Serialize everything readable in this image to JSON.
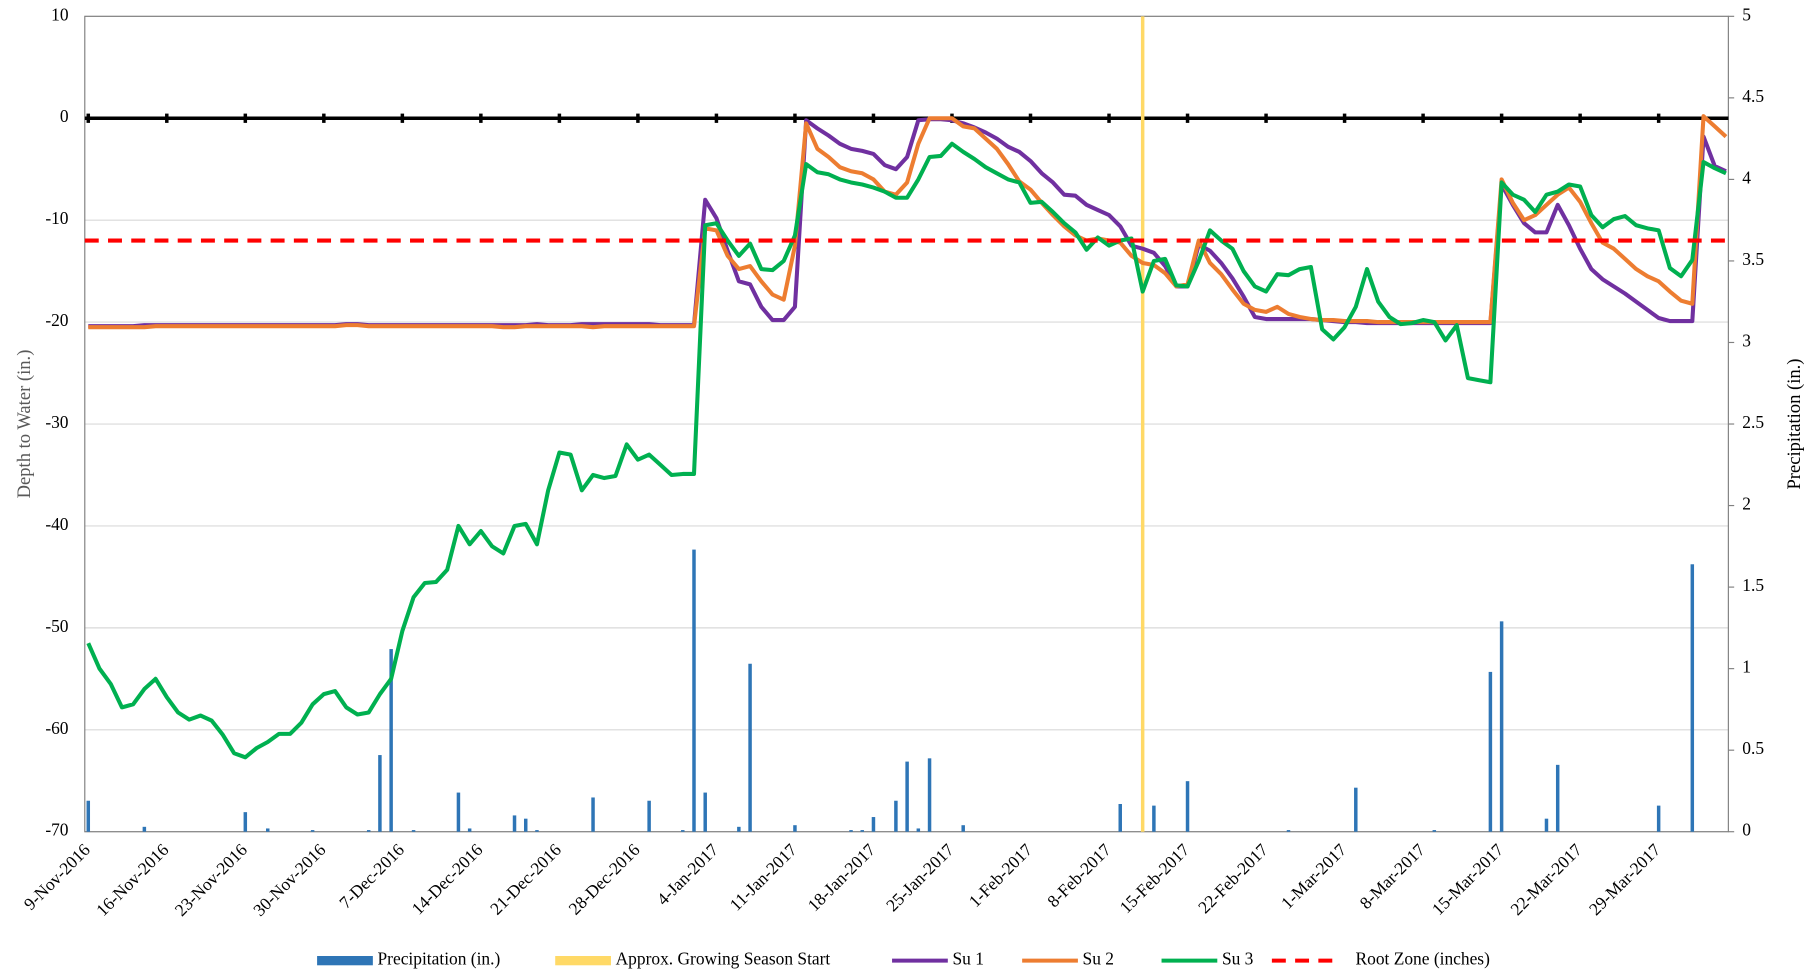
{
  "chart_data": {
    "type": "line",
    "y_label": "Depth to Water (in.)",
    "y2_label": "Precipitation (in.)",
    "ylim": [
      -70,
      10
    ],
    "yticks": [
      -70,
      -60,
      -50,
      -40,
      -30,
      -20,
      -10,
      0,
      10
    ],
    "y2lim": [
      0,
      5
    ],
    "y2ticks": [
      0,
      0.5,
      1,
      1.5,
      2,
      2.5,
      3,
      3.5,
      4,
      4.5,
      5
    ],
    "grid": true,
    "x": [
      "9-Nov-2016",
      "10-Nov-2016",
      "11-Nov-2016",
      "12-Nov-2016",
      "13-Nov-2016",
      "14-Nov-2016",
      "15-Nov-2016",
      "16-Nov-2016",
      "17-Nov-2016",
      "18-Nov-2016",
      "19-Nov-2016",
      "20-Nov-2016",
      "21-Nov-2016",
      "22-Nov-2016",
      "23-Nov-2016",
      "24-Nov-2016",
      "25-Nov-2016",
      "26-Nov-2016",
      "27-Nov-2016",
      "28-Nov-2016",
      "29-Nov-2016",
      "30-Nov-2016",
      "1-Dec-2016",
      "2-Dec-2016",
      "3-Dec-2016",
      "4-Dec-2016",
      "5-Dec-2016",
      "6-Dec-2016",
      "7-Dec-2016",
      "8-Dec-2016",
      "9-Dec-2016",
      "10-Dec-2016",
      "11-Dec-2016",
      "12-Dec-2016",
      "13-Dec-2016",
      "14-Dec-2016",
      "15-Dec-2016",
      "16-Dec-2016",
      "17-Dec-2016",
      "18-Dec-2016",
      "19-Dec-2016",
      "20-Dec-2016",
      "21-Dec-2016",
      "22-Dec-2016",
      "23-Dec-2016",
      "24-Dec-2016",
      "25-Dec-2016",
      "26-Dec-2016",
      "27-Dec-2016",
      "28-Dec-2016",
      "29-Dec-2016",
      "30-Dec-2016",
      "31-Dec-2016",
      "1-Jan-2017",
      "2-Jan-2017",
      "3-Jan-2017",
      "4-Jan-2017",
      "5-Jan-2017",
      "6-Jan-2017",
      "7-Jan-2017",
      "8-Jan-2017",
      "9-Jan-2017",
      "10-Jan-2017",
      "11-Jan-2017",
      "12-Jan-2017",
      "13-Jan-2017",
      "14-Jan-2017",
      "15-Jan-2017",
      "16-Jan-2017",
      "17-Jan-2017",
      "18-Jan-2017",
      "19-Jan-2017",
      "20-Jan-2017",
      "21-Jan-2017",
      "22-Jan-2017",
      "23-Jan-2017",
      "24-Jan-2017",
      "25-Jan-2017",
      "26-Jan-2017",
      "27-Jan-2017",
      "28-Jan-2017",
      "29-Jan-2017",
      "30-Jan-2017",
      "31-Jan-2017",
      "1-Feb-2017",
      "2-Feb-2017",
      "3-Feb-2017",
      "4-Feb-2017",
      "5-Feb-2017",
      "6-Feb-2017",
      "7-Feb-2017",
      "8-Feb-2017",
      "9-Feb-2017",
      "10-Feb-2017",
      "11-Feb-2017",
      "12-Feb-2017",
      "13-Feb-2017",
      "14-Feb-2017",
      "15-Feb-2017",
      "16-Feb-2017",
      "17-Feb-2017",
      "18-Feb-2017",
      "19-Feb-2017",
      "20-Feb-2017",
      "21-Feb-2017",
      "22-Feb-2017",
      "23-Feb-2017",
      "24-Feb-2017",
      "25-Feb-2017",
      "26-Feb-2017",
      "27-Feb-2017",
      "28-Feb-2017",
      "1-Mar-2017",
      "2-Mar-2017",
      "3-Mar-2017",
      "4-Mar-2017",
      "5-Mar-2017",
      "6-Mar-2017",
      "7-Mar-2017",
      "8-Mar-2017",
      "9-Mar-2017",
      "10-Mar-2017",
      "11-Mar-2017",
      "12-Mar-2017",
      "13-Mar-2017",
      "14-Mar-2017",
      "15-Mar-2017",
      "16-Mar-2017",
      "17-Mar-2017",
      "18-Mar-2017",
      "19-Mar-2017",
      "20-Mar-2017",
      "21-Mar-2017",
      "22-Mar-2017",
      "23-Mar-2017",
      "24-Mar-2017",
      "25-Mar-2017",
      "26-Mar-2017",
      "27-Mar-2017",
      "28-Mar-2017",
      "29-Mar-2017",
      "30-Mar-2017",
      "31-Mar-2017",
      "1-Apr-2017",
      "2-Apr-2017",
      "3-Apr-2017",
      "4-Apr-2017"
    ],
    "xticks": [
      "9-Nov-2016",
      "16-Nov-2016",
      "23-Nov-2016",
      "30-Nov-2016",
      "7-Dec-2016",
      "14-Dec-2016",
      "21-Dec-2016",
      "28-Dec-2016",
      "4-Jan-2017",
      "11-Jan-2017",
      "18-Jan-2017",
      "25-Jan-2017",
      "1-Feb-2017",
      "8-Feb-2017",
      "15-Feb-2017",
      "22-Feb-2017",
      "1-Mar-2017",
      "8-Mar-2017",
      "15-Mar-2017",
      "22-Mar-2017",
      "29-Mar-2017"
    ],
    "series": [
      {
        "name": "Precipitation (in.)",
        "type": "bar",
        "axis": "y2",
        "color": "#2e75b6",
        "values": [
          0.19,
          0,
          0,
          0,
          0,
          0.03,
          0,
          0,
          0,
          0,
          0,
          0,
          0,
          0,
          0.12,
          0,
          0.02,
          0,
          0,
          0,
          0.01,
          0,
          0,
          0,
          0,
          0.01,
          0.47,
          1.12,
          0,
          0.01,
          0,
          0,
          0,
          0.24,
          0.02,
          0,
          0,
          0,
          0.1,
          0.08,
          0.01,
          0,
          0,
          0,
          0,
          0.21,
          0,
          0,
          0,
          0,
          0.19,
          0,
          0,
          0.01,
          1.73,
          0.24,
          0,
          0,
          0.03,
          1.03,
          0,
          0,
          0,
          0.04,
          0,
          0,
          0,
          0,
          0.01,
          0.01,
          0.09,
          0,
          0.19,
          0.43,
          0.02,
          0.45,
          0,
          0,
          0.04,
          0,
          0,
          0,
          0,
          0,
          0,
          0,
          0,
          0,
          0,
          0,
          0,
          0,
          0.17,
          0,
          0,
          0.16,
          0,
          0,
          0.31,
          0,
          0,
          0,
          0,
          0,
          0,
          0,
          0,
          0.01,
          0,
          0,
          0,
          0,
          0,
          0.27,
          0,
          0,
          0,
          0,
          0,
          0,
          0.01,
          0,
          0,
          0,
          0,
          0.98,
          1.29,
          0,
          0,
          0,
          0.08,
          0.41,
          0,
          0,
          0,
          0,
          0,
          0,
          0,
          0,
          0.16,
          0,
          0,
          1.64,
          0,
          0,
          0
        ]
      },
      {
        "name": "Approx. Growing Season Start",
        "type": "vline",
        "color": "#ffd966",
        "x": "11-Feb-2017"
      },
      {
        "name": "Su 1",
        "type": "line",
        "color": "#7030a0",
        "values": [
          -20.4,
          -20.4,
          -20.4,
          -20.4,
          -20.4,
          -20.3,
          -20.3,
          -20.3,
          -20.3,
          -20.3,
          -20.3,
          -20.3,
          -20.3,
          -20.3,
          -20.3,
          -20.3,
          -20.3,
          -20.3,
          -20.3,
          -20.3,
          -20.3,
          -20.3,
          -20.3,
          -20.2,
          -20.2,
          -20.3,
          -20.3,
          -20.3,
          -20.3,
          -20.3,
          -20.3,
          -20.3,
          -20.3,
          -20.3,
          -20.3,
          -20.3,
          -20.3,
          -20.3,
          -20.3,
          -20.3,
          -20.2,
          -20.3,
          -20.3,
          -20.3,
          -20.2,
          -20.2,
          -20.2,
          -20.2,
          -20.2,
          -20.2,
          -20.2,
          -20.3,
          -20.3,
          -20.3,
          -20.3,
          -8,
          -9.8,
          -13,
          -16,
          -16.3,
          -18.5,
          -19.8,
          -19.8,
          -18.5,
          -0.2,
          -1,
          -1.7,
          -2.5,
          -3,
          -3.2,
          -3.5,
          -4.6,
          -5,
          -3.8,
          -0.2,
          -0.1,
          -0.1,
          -0.2,
          -0.5,
          -0.9,
          -1.4,
          -2,
          -2.8,
          -3.3,
          -4.2,
          -5.4,
          -6.3,
          -7.5,
          -7.6,
          -8.5,
          -9,
          -9.5,
          -10.6,
          -12.5,
          -12.8,
          -13.2,
          -14.5,
          -16.5,
          -16.5,
          -12.4,
          -13,
          -14.2,
          -15.7,
          -17.5,
          -19.5,
          -19.7,
          -19.7,
          -19.7,
          -19.7,
          -19.7,
          -19.8,
          -19.9,
          -20,
          -20,
          -20.1,
          -20.1,
          -20.1,
          -20.1,
          -20.1,
          -20.1,
          -20.1,
          -20.1,
          -20.1,
          -20.1,
          -20.1,
          -20.1,
          -6.5,
          -8.5,
          -10.3,
          -11.2,
          -11.2,
          -8.5,
          -10.5,
          -12.8,
          -14.8,
          -15.8,
          -16.5,
          -17.2,
          -18,
          -18.8,
          -19.6,
          -19.9,
          -19.9,
          -19.9,
          -1.8,
          -4.7,
          -5.2
        ]
      },
      {
        "name": "Su 2",
        "type": "line",
        "color": "#ed7d31",
        "values": [
          -20.5,
          -20.5,
          -20.5,
          -20.5,
          -20.5,
          -20.5,
          -20.4,
          -20.4,
          -20.4,
          -20.4,
          -20.4,
          -20.4,
          -20.4,
          -20.4,
          -20.4,
          -20.4,
          -20.4,
          -20.4,
          -20.4,
          -20.4,
          -20.4,
          -20.4,
          -20.4,
          -20.3,
          -20.3,
          -20.4,
          -20.4,
          -20.4,
          -20.4,
          -20.4,
          -20.4,
          -20.4,
          -20.4,
          -20.4,
          -20.4,
          -20.4,
          -20.4,
          -20.5,
          -20.5,
          -20.4,
          -20.4,
          -20.4,
          -20.4,
          -20.4,
          -20.4,
          -20.5,
          -20.4,
          -20.4,
          -20.4,
          -20.4,
          -20.4,
          -20.4,
          -20.4,
          -20.4,
          -20.4,
          -10.8,
          -11,
          -13.5,
          -14.8,
          -14.5,
          -16,
          -17.3,
          -17.8,
          -12.5,
          -0.5,
          -3,
          -3.8,
          -4.8,
          -5.2,
          -5.4,
          -6,
          -7.2,
          -7.5,
          -6.3,
          -2.5,
          0,
          0,
          0,
          -0.8,
          -1,
          -2,
          -3,
          -4.5,
          -6.2,
          -7,
          -8.3,
          -9.5,
          -10.6,
          -11.5,
          -12,
          -11.8,
          -12,
          -12.2,
          -13.5,
          -14.2,
          -14.4,
          -15.2,
          -16.5,
          -16.3,
          -12,
          -14.2,
          -15.3,
          -16.8,
          -18.2,
          -18.8,
          -19,
          -18.5,
          -19.2,
          -19.5,
          -19.7,
          -19.8,
          -19.8,
          -19.9,
          -19.9,
          -19.9,
          -20,
          -20,
          -20,
          -20,
          -20,
          -20,
          -20,
          -20,
          -20,
          -20,
          -20,
          -6,
          -8.3,
          -10,
          -9.5,
          -8.5,
          -7.5,
          -6.8,
          -8.2,
          -10.3,
          -12.2,
          -12.8,
          -13.8,
          -14.8,
          -15.5,
          -16,
          -17,
          -17.9,
          -18.2,
          0.2,
          -0.8,
          -1.8
        ]
      },
      {
        "name": "Su 3",
        "type": "line",
        "color": "#00b050",
        "values": [
          -51.5,
          -54,
          -55.5,
          -57.8,
          -57.5,
          -56,
          -55,
          -56.8,
          -58.3,
          -59,
          -58.6,
          -59.1,
          -60.5,
          -62.3,
          -62.7,
          -61.8,
          -61.2,
          -60.4,
          -60.4,
          -59.3,
          -57.5,
          -56.5,
          -56.2,
          -57.8,
          -58.5,
          -58.3,
          -56.5,
          -55,
          -50.3,
          -47,
          -45.6,
          -45.5,
          -44.3,
          -40,
          -41.8,
          -40.5,
          -42,
          -42.7,
          -40,
          -39.8,
          -41.8,
          -36.5,
          -32.8,
          -33,
          -36.5,
          -35,
          -35.3,
          -35.1,
          -32,
          -33.5,
          -33,
          -34,
          -35,
          -34.9,
          -34.9,
          -10.5,
          -10.3,
          -12,
          -13.5,
          -12.3,
          -14.8,
          -14.9,
          -14,
          -11.5,
          -4.5,
          -5.3,
          -5.5,
          -6,
          -6.3,
          -6.5,
          -6.8,
          -7.2,
          -7.8,
          -7.8,
          -6,
          -3.8,
          -3.7,
          -2.5,
          -3.3,
          -4,
          -4.8,
          -5.4,
          -6,
          -6.3,
          -8.3,
          -8.2,
          -9.2,
          -10.3,
          -11.2,
          -12.9,
          -11.7,
          -12.5,
          -12,
          -11.8,
          -17,
          -14,
          -13.8,
          -16.4,
          -16.5,
          -14,
          -11,
          -12,
          -12.8,
          -15,
          -16.5,
          -17,
          -15.3,
          -15.4,
          -14.8,
          -14.6,
          -20.7,
          -21.7,
          -20.5,
          -18.5,
          -14.8,
          -18,
          -19.5,
          -20.2,
          -20.1,
          -19.8,
          -20,
          -21.8,
          -20.3,
          -25.5,
          -25.7,
          -25.9,
          -6.3,
          -7.5,
          -8,
          -9.2,
          -7.5,
          -7.2,
          -6.5,
          -6.7,
          -9.5,
          -10.7,
          -9.9,
          -9.6,
          -10.5,
          -10.8,
          -11,
          -14.7,
          -15.5,
          -13.9,
          -4.3,
          -4.9,
          -5.4
        ]
      },
      {
        "name": "Root Zone (inches)",
        "type": "hline",
        "color": "#ff0000",
        "value": -12
      }
    ]
  }
}
